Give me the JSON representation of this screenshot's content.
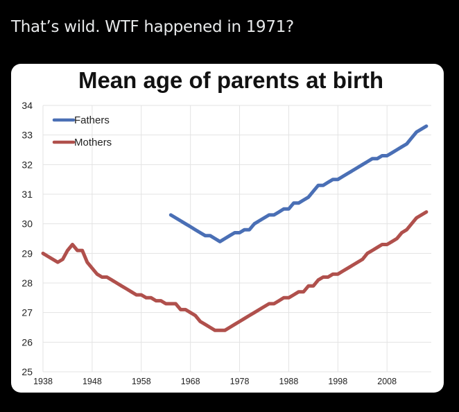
{
  "post": {
    "text": "That’s wild. WTF happened in 1971?"
  },
  "chart_data": {
    "type": "line",
    "title": "Mean age of parents at birth",
    "xlabel": "",
    "ylabel": "",
    "xlim": [
      1938,
      2017
    ],
    "ylim": [
      25,
      34
    ],
    "x_ticks": [
      1938,
      1948,
      1958,
      1968,
      1978,
      1988,
      1998,
      2008
    ],
    "y_ticks": [
      25,
      26,
      27,
      28,
      29,
      30,
      31,
      32,
      33,
      34
    ],
    "grid": true,
    "legend": "top-left",
    "series": [
      {
        "name": "Fathers",
        "color": "#4a6fb5",
        "points": [
          [
            1964,
            30.3
          ],
          [
            1965,
            30.2
          ],
          [
            1966,
            30.1
          ],
          [
            1967,
            30.0
          ],
          [
            1968,
            29.9
          ],
          [
            1969,
            29.8
          ],
          [
            1970,
            29.7
          ],
          [
            1971,
            29.6
          ],
          [
            1972,
            29.6
          ],
          [
            1973,
            29.5
          ],
          [
            1974,
            29.4
          ],
          [
            1975,
            29.5
          ],
          [
            1976,
            29.6
          ],
          [
            1977,
            29.7
          ],
          [
            1978,
            29.7
          ],
          [
            1979,
            29.8
          ],
          [
            1980,
            29.8
          ],
          [
            1981,
            30.0
          ],
          [
            1982,
            30.1
          ],
          [
            1983,
            30.2
          ],
          [
            1984,
            30.3
          ],
          [
            1985,
            30.3
          ],
          [
            1986,
            30.4
          ],
          [
            1987,
            30.5
          ],
          [
            1988,
            30.5
          ],
          [
            1989,
            30.7
          ],
          [
            1990,
            30.7
          ],
          [
            1991,
            30.8
          ],
          [
            1992,
            30.9
          ],
          [
            1993,
            31.1
          ],
          [
            1994,
            31.3
          ],
          [
            1995,
            31.3
          ],
          [
            1996,
            31.4
          ],
          [
            1997,
            31.5
          ],
          [
            1998,
            31.5
          ],
          [
            1999,
            31.6
          ],
          [
            2000,
            31.7
          ],
          [
            2001,
            31.8
          ],
          [
            2002,
            31.9
          ],
          [
            2003,
            32.0
          ],
          [
            2004,
            32.1
          ],
          [
            2005,
            32.2
          ],
          [
            2006,
            32.2
          ],
          [
            2007,
            32.3
          ],
          [
            2008,
            32.3
          ],
          [
            2009,
            32.4
          ],
          [
            2010,
            32.5
          ],
          [
            2011,
            32.6
          ],
          [
            2012,
            32.7
          ],
          [
            2013,
            32.9
          ],
          [
            2014,
            33.1
          ],
          [
            2015,
            33.2
          ],
          [
            2016,
            33.3
          ]
        ]
      },
      {
        "name": "Mothers",
        "color": "#b0504c",
        "points": [
          [
            1938,
            29.0
          ],
          [
            1939,
            28.9
          ],
          [
            1940,
            28.8
          ],
          [
            1941,
            28.7
          ],
          [
            1942,
            28.8
          ],
          [
            1943,
            29.1
          ],
          [
            1944,
            29.3
          ],
          [
            1945,
            29.1
          ],
          [
            1946,
            29.1
          ],
          [
            1947,
            28.7
          ],
          [
            1948,
            28.5
          ],
          [
            1949,
            28.3
          ],
          [
            1950,
            28.2
          ],
          [
            1951,
            28.2
          ],
          [
            1952,
            28.1
          ],
          [
            1953,
            28.0
          ],
          [
            1954,
            27.9
          ],
          [
            1955,
            27.8
          ],
          [
            1956,
            27.7
          ],
          [
            1957,
            27.6
          ],
          [
            1958,
            27.6
          ],
          [
            1959,
            27.5
          ],
          [
            1960,
            27.5
          ],
          [
            1961,
            27.4
          ],
          [
            1962,
            27.4
          ],
          [
            1963,
            27.3
          ],
          [
            1964,
            27.3
          ],
          [
            1965,
            27.3
          ],
          [
            1966,
            27.1
          ],
          [
            1967,
            27.1
          ],
          [
            1968,
            27.0
          ],
          [
            1969,
            26.9
          ],
          [
            1970,
            26.7
          ],
          [
            1971,
            26.6
          ],
          [
            1972,
            26.5
          ],
          [
            1973,
            26.4
          ],
          [
            1974,
            26.4
          ],
          [
            1975,
            26.4
          ],
          [
            1976,
            26.5
          ],
          [
            1977,
            26.6
          ],
          [
            1978,
            26.7
          ],
          [
            1979,
            26.8
          ],
          [
            1980,
            26.9
          ],
          [
            1981,
            27.0
          ],
          [
            1982,
            27.1
          ],
          [
            1983,
            27.2
          ],
          [
            1984,
            27.3
          ],
          [
            1985,
            27.3
          ],
          [
            1986,
            27.4
          ],
          [
            1987,
            27.5
          ],
          [
            1988,
            27.5
          ],
          [
            1989,
            27.6
          ],
          [
            1990,
            27.7
          ],
          [
            1991,
            27.7
          ],
          [
            1992,
            27.9
          ],
          [
            1993,
            27.9
          ],
          [
            1994,
            28.1
          ],
          [
            1995,
            28.2
          ],
          [
            1996,
            28.2
          ],
          [
            1997,
            28.3
          ],
          [
            1998,
            28.3
          ],
          [
            1999,
            28.4
          ],
          [
            2000,
            28.5
          ],
          [
            2001,
            28.6
          ],
          [
            2002,
            28.7
          ],
          [
            2003,
            28.8
          ],
          [
            2004,
            29.0
          ],
          [
            2005,
            29.1
          ],
          [
            2006,
            29.2
          ],
          [
            2007,
            29.3
          ],
          [
            2008,
            29.3
          ],
          [
            2009,
            29.4
          ],
          [
            2010,
            29.5
          ],
          [
            2011,
            29.7
          ],
          [
            2012,
            29.8
          ],
          [
            2013,
            30.0
          ],
          [
            2014,
            30.2
          ],
          [
            2015,
            30.3
          ],
          [
            2016,
            30.4
          ]
        ]
      }
    ]
  }
}
